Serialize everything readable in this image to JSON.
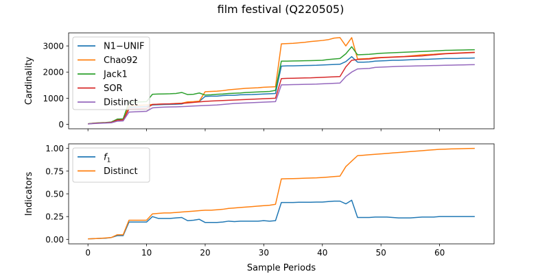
{
  "figure": {
    "title": "film festival (Q220505)"
  },
  "chart_data": [
    {
      "type": "line",
      "xlabel": "",
      "ylabel": "Cardinality",
      "xlim": [
        -3.3,
        69.3
      ],
      "ylim": [
        -170,
        3500
      ],
      "yticks": [
        0,
        1000,
        2000,
        3000
      ],
      "xticks": [
        0,
        10,
        20,
        30,
        40,
        50,
        60
      ],
      "show_xtick_labels": false,
      "legend": "upper-left",
      "x": [
        0,
        1,
        2,
        3,
        4,
        5,
        6,
        7,
        8,
        9,
        10,
        11,
        12,
        13,
        14,
        15,
        16,
        17,
        18,
        19,
        20,
        21,
        22,
        23,
        24,
        25,
        26,
        27,
        28,
        29,
        30,
        31,
        32,
        33,
        34,
        35,
        36,
        37,
        38,
        39,
        40,
        41,
        42,
        43,
        44,
        45,
        46,
        47,
        48,
        49,
        50,
        51,
        52,
        53,
        54,
        55,
        56,
        57,
        58,
        59,
        60,
        61,
        62,
        63,
        64,
        65,
        66
      ],
      "series": [
        {
          "name": "N1−UNIF",
          "color": "#1f77b4",
          "values": [
            20,
            40,
            50,
            55,
            70,
            170,
            180,
            650,
            660,
            670,
            680,
            740,
            750,
            760,
            765,
            770,
            780,
            850,
            860,
            880,
            1070,
            1080,
            1080,
            1100,
            1110,
            1110,
            1130,
            1135,
            1140,
            1150,
            1160,
            1170,
            1180,
            2230,
            2240,
            2240,
            2245,
            2250,
            2255,
            2260,
            2270,
            2280,
            2290,
            2300,
            2400,
            2590,
            2380,
            2380,
            2390,
            2420,
            2430,
            2440,
            2450,
            2450,
            2460,
            2470,
            2480,
            2490,
            2490,
            2500,
            2510,
            2520,
            2520,
            2520,
            2530,
            2530,
            2540
          ]
        },
        {
          "name": "Chao92",
          "color": "#ff7f0e",
          "values": [
            20,
            40,
            60,
            65,
            80,
            200,
            200,
            700,
            720,
            730,
            740,
            760,
            770,
            780,
            785,
            800,
            810,
            860,
            870,
            890,
            1250,
            1260,
            1270,
            1290,
            1320,
            1340,
            1360,
            1380,
            1390,
            1400,
            1420,
            1430,
            1440,
            3080,
            3090,
            3100,
            3120,
            3140,
            3170,
            3190,
            3210,
            3240,
            3300,
            3320,
            3000,
            3320,
            2500,
            2510,
            2520,
            2550,
            2560,
            2570,
            2580,
            2590,
            2600,
            2620,
            2640,
            2660,
            2670,
            2680,
            2700,
            2710,
            2720,
            2730,
            2740,
            2750,
            2760
          ]
        },
        {
          "name": "Jack1",
          "color": "#2ca02c",
          "values": [
            20,
            45,
            60,
            70,
            90,
            200,
            210,
            840,
            850,
            860,
            870,
            1150,
            1160,
            1165,
            1170,
            1180,
            1220,
            1140,
            1150,
            1200,
            1120,
            1130,
            1150,
            1160,
            1180,
            1190,
            1200,
            1220,
            1230,
            1240,
            1250,
            1260,
            1300,
            2420,
            2420,
            2425,
            2430,
            2435,
            2440,
            2445,
            2450,
            2480,
            2500,
            2520,
            2700,
            2970,
            2660,
            2670,
            2680,
            2700,
            2720,
            2730,
            2740,
            2750,
            2760,
            2770,
            2780,
            2790,
            2800,
            2810,
            2820,
            2830,
            2835,
            2840,
            2845,
            2850,
            2855
          ]
        },
        {
          "name": "SOR",
          "color": "#d62728",
          "values": [
            15,
            40,
            50,
            60,
            75,
            160,
            170,
            580,
            590,
            600,
            610,
            760,
            770,
            780,
            785,
            790,
            800,
            820,
            840,
            860,
            880,
            890,
            900,
            910,
            920,
            930,
            940,
            950,
            960,
            970,
            980,
            990,
            1000,
            1750,
            1760,
            1765,
            1770,
            1775,
            1780,
            1790,
            1800,
            1810,
            1820,
            1830,
            2200,
            2450,
            2480,
            2490,
            2500,
            2530,
            2550,
            2560,
            2570,
            2580,
            2590,
            2600,
            2610,
            2620,
            2640,
            2660,
            2680,
            2700,
            2710,
            2720,
            2730,
            2740,
            2750
          ]
        },
        {
          "name": "Distinct",
          "color": "#9467bd",
          "values": [
            15,
            30,
            40,
            50,
            60,
            120,
            130,
            470,
            480,
            490,
            500,
            630,
            650,
            660,
            665,
            670,
            680,
            690,
            700,
            710,
            720,
            730,
            740,
            760,
            780,
            800,
            810,
            820,
            830,
            840,
            850,
            860,
            870,
            1510,
            1515,
            1520,
            1525,
            1530,
            1535,
            1540,
            1550,
            1560,
            1570,
            1580,
            1830,
            2000,
            2120,
            2130,
            2140,
            2180,
            2190,
            2200,
            2210,
            2220,
            2225,
            2230,
            2235,
            2240,
            2245,
            2250,
            2255,
            2260,
            2265,
            2270,
            2275,
            2280,
            2285
          ]
        }
      ]
    },
    {
      "type": "line",
      "xlabel": "Sample Periods",
      "ylabel": "Indicators",
      "xlim": [
        -3.3,
        69.3
      ],
      "ylim": [
        -0.05,
        1.05
      ],
      "yticks": [
        0.0,
        0.25,
        0.5,
        0.75,
        1.0
      ],
      "ytick_labels": [
        "0.00",
        "0.25",
        "0.50",
        "0.75",
        "1.00"
      ],
      "xticks": [
        0,
        10,
        20,
        30,
        40,
        50,
        60
      ],
      "show_xtick_labels": true,
      "legend": "upper-left",
      "x": [
        0,
        1,
        2,
        3,
        4,
        5,
        6,
        7,
        8,
        9,
        10,
        11,
        12,
        13,
        14,
        15,
        16,
        17,
        18,
        19,
        20,
        21,
        22,
        23,
        24,
        25,
        26,
        27,
        28,
        29,
        30,
        31,
        32,
        33,
        34,
        35,
        36,
        37,
        38,
        39,
        40,
        41,
        42,
        43,
        44,
        45,
        46,
        47,
        48,
        49,
        50,
        51,
        52,
        53,
        54,
        55,
        56,
        57,
        58,
        59,
        60,
        61,
        62,
        63,
        64,
        65,
        66
      ],
      "series": [
        {
          "name": "f1",
          "legend_main": "f",
          "legend_sub": "1",
          "color": "#1f77b4",
          "values": [
            0.005,
            0.007,
            0.01,
            0.012,
            0.02,
            0.04,
            0.04,
            0.19,
            0.19,
            0.19,
            0.19,
            0.25,
            0.23,
            0.23,
            0.23,
            0.235,
            0.24,
            0.205,
            0.21,
            0.22,
            0.185,
            0.185,
            0.185,
            0.19,
            0.2,
            0.195,
            0.2,
            0.2,
            0.2,
            0.2,
            0.205,
            0.2,
            0.205,
            0.405,
            0.405,
            0.405,
            0.408,
            0.408,
            0.408,
            0.41,
            0.41,
            0.415,
            0.42,
            0.42,
            0.39,
            0.43,
            0.24,
            0.24,
            0.24,
            0.245,
            0.245,
            0.245,
            0.24,
            0.235,
            0.235,
            0.235,
            0.24,
            0.245,
            0.245,
            0.245,
            0.25,
            0.25,
            0.25,
            0.25,
            0.25,
            0.25,
            0.25
          ]
        },
        {
          "name": "Distinct",
          "legend_main": "Distinct",
          "legend_sub": "",
          "color": "#ff7f0e",
          "values": [
            0.005,
            0.007,
            0.01,
            0.015,
            0.02,
            0.05,
            0.05,
            0.21,
            0.21,
            0.21,
            0.21,
            0.28,
            0.285,
            0.29,
            0.29,
            0.295,
            0.3,
            0.305,
            0.31,
            0.315,
            0.32,
            0.32,
            0.325,
            0.33,
            0.34,
            0.345,
            0.35,
            0.355,
            0.36,
            0.365,
            0.37,
            0.375,
            0.385,
            0.665,
            0.667,
            0.668,
            0.67,
            0.672,
            0.674,
            0.676,
            0.68,
            0.685,
            0.69,
            0.695,
            0.8,
            0.86,
            0.92,
            0.925,
            0.93,
            0.935,
            0.94,
            0.945,
            0.95,
            0.955,
            0.96,
            0.965,
            0.97,
            0.975,
            0.98,
            0.985,
            0.99,
            0.992,
            0.994,
            0.995,
            0.997,
            0.999,
            1.0
          ]
        }
      ]
    }
  ]
}
